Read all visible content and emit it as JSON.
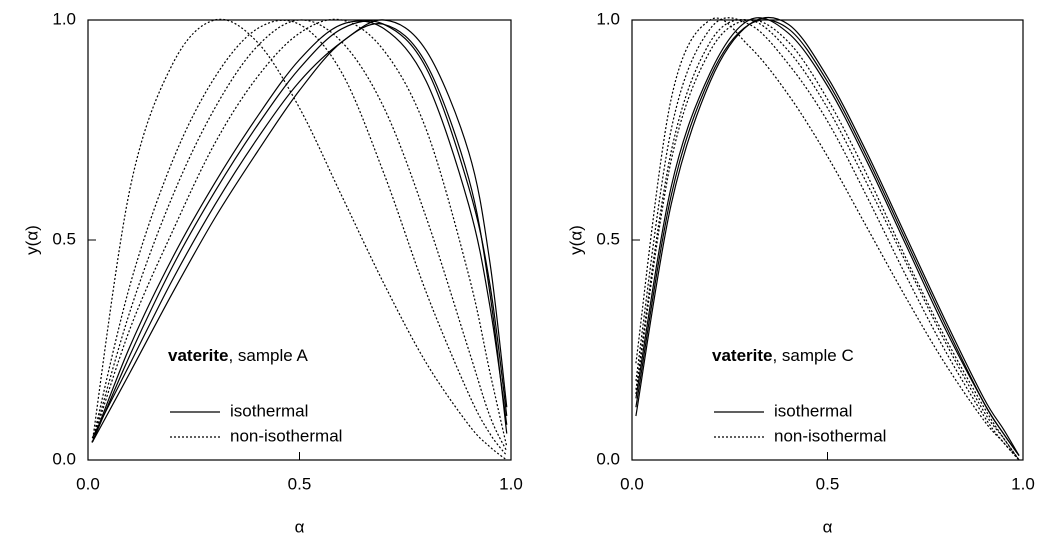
{
  "chart_data": [
    {
      "type": "line",
      "xlabel": "α",
      "ylabel": "y(α)",
      "xlim": [
        0,
        1
      ],
      "ylim": [
        0,
        1
      ],
      "xticks": [
        {
          "value": 0,
          "label": "0.0"
        },
        {
          "value": 0.5,
          "label": "0.5"
        },
        {
          "value": 1,
          "label": "1.0"
        }
      ],
      "yticks": [
        {
          "value": 0,
          "label": "0.0"
        },
        {
          "value": 0.5,
          "label": "0.5"
        },
        {
          "value": 1,
          "label": "1.0"
        }
      ],
      "annotation": {
        "bold": "vaterite",
        "text": ", sample A"
      },
      "x": [
        0.01,
        0.1,
        0.2,
        0.3,
        0.4,
        0.5,
        0.6,
        0.7,
        0.8,
        0.9,
        0.95,
        0.99
      ],
      "series": [
        {
          "name": "isothermal",
          "dash": "solid",
          "color": "#000000",
          "curves": [
            {
              "values": [
                0.04,
                0.26,
                0.46,
                0.63,
                0.78,
                0.91,
                0.99,
                0.98,
                0.86,
                0.58,
                0.35,
                0.08
              ]
            },
            {
              "values": [
                0.04,
                0.24,
                0.44,
                0.61,
                0.76,
                0.89,
                0.98,
                0.99,
                0.89,
                0.62,
                0.4,
                0.1
              ]
            },
            {
              "values": [
                0.05,
                0.22,
                0.41,
                0.58,
                0.73,
                0.86,
                0.95,
                1.0,
                0.93,
                0.7,
                0.45,
                0.12
              ]
            },
            {
              "values": [
                0.04,
                0.2,
                0.38,
                0.55,
                0.7,
                0.84,
                0.95,
                0.99,
                0.9,
                0.64,
                0.38,
                0.06
              ]
            }
          ]
        },
        {
          "name": "non-isothermal",
          "dash": "dotted",
          "color": "#000000",
          "curves": [
            {
              "values": [
                0.04,
                0.62,
                0.9,
                1.0,
                0.95,
                0.8,
                0.6,
                0.4,
                0.22,
                0.08,
                0.03,
                0.0
              ]
            },
            {
              "values": [
                0.04,
                0.4,
                0.68,
                0.87,
                0.98,
                0.99,
                0.88,
                0.65,
                0.38,
                0.15,
                0.06,
                0.01
              ]
            },
            {
              "values": [
                0.04,
                0.34,
                0.6,
                0.8,
                0.94,
                1.0,
                0.95,
                0.8,
                0.55,
                0.25,
                0.1,
                0.02
              ]
            },
            {
              "values": [
                0.04,
                0.3,
                0.52,
                0.72,
                0.87,
                0.97,
                1.0,
                0.93,
                0.75,
                0.42,
                0.2,
                0.03
              ]
            }
          ]
        }
      ]
    },
    {
      "type": "line",
      "xlabel": "α",
      "ylabel": "y(α)",
      "xlim": [
        0,
        1
      ],
      "ylim": [
        0,
        1
      ],
      "xticks": [
        {
          "value": 0,
          "label": "0.0"
        },
        {
          "value": 0.5,
          "label": "0.5"
        },
        {
          "value": 1,
          "label": "1.0"
        }
      ],
      "yticks": [
        {
          "value": 0,
          "label": "0.0"
        },
        {
          "value": 0.5,
          "label": "0.5"
        },
        {
          "value": 1,
          "label": "1.0"
        }
      ],
      "annotation": {
        "bold": "vaterite",
        "text": ", sample C"
      },
      "x": [
        0.01,
        0.1,
        0.2,
        0.3,
        0.4,
        0.5,
        0.6,
        0.7,
        0.8,
        0.9,
        0.95,
        0.99
      ],
      "series": [
        {
          "name": "isothermal",
          "dash": "solid",
          "color": "#000000",
          "curves": [
            {
              "values": [
                0.12,
                0.6,
                0.87,
                0.99,
                0.98,
                0.86,
                0.69,
                0.5,
                0.31,
                0.13,
                0.06,
                0.01
              ]
            },
            {
              "values": [
                0.1,
                0.58,
                0.86,
                0.99,
                0.99,
                0.87,
                0.7,
                0.51,
                0.32,
                0.14,
                0.07,
                0.01
              ]
            },
            {
              "values": [
                0.14,
                0.62,
                0.88,
                1.0,
                0.97,
                0.85,
                0.68,
                0.49,
                0.3,
                0.13,
                0.06,
                0.01
              ]
            }
          ]
        },
        {
          "name": "non-isothermal",
          "dash": "dotted",
          "color": "#000000",
          "curves": [
            {
              "values": [
                0.22,
                0.82,
                1.0,
                0.94,
                0.83,
                0.69,
                0.53,
                0.37,
                0.22,
                0.09,
                0.04,
                0.0
              ]
            },
            {
              "values": [
                0.18,
                0.75,
                0.98,
                0.99,
                0.9,
                0.77,
                0.6,
                0.42,
                0.25,
                0.1,
                0.04,
                0.0
              ]
            },
            {
              "values": [
                0.16,
                0.7,
                0.95,
                1.0,
                0.93,
                0.8,
                0.63,
                0.45,
                0.27,
                0.11,
                0.05,
                0.0
              ]
            },
            {
              "values": [
                0.15,
                0.68,
                0.93,
                1.0,
                0.95,
                0.82,
                0.65,
                0.46,
                0.28,
                0.12,
                0.05,
                0.0
              ]
            }
          ]
        }
      ]
    }
  ]
}
